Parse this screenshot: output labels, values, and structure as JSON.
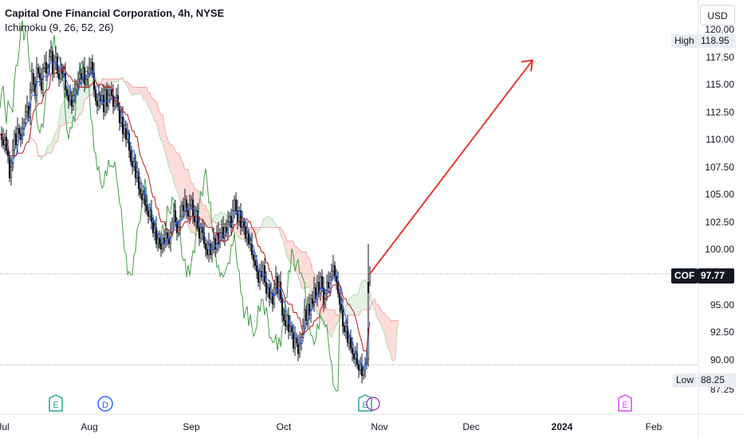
{
  "header": {
    "title": "Capital One Financial Corporation, 4h, NYSE",
    "indicator": "Ichimoku (9, 26, 52, 26)",
    "currency_button": "USD"
  },
  "badges": {
    "high_label": "High",
    "high_value": "118.95",
    "low_label": "Low",
    "low_value": "88.25",
    "symbol_label": "COF",
    "symbol_value": "97.77"
  },
  "colors": {
    "up": "#131722",
    "down": "#131722",
    "tenkan": "#2962ff",
    "kijun": "#b71c1c",
    "chikou": "#43a047",
    "cloud_bull": "#e2f0e2",
    "cloud_bear": "#fcd9d6",
    "span_a": "#a5d6a7",
    "span_b": "#ef9a9a",
    "arrow": "#e53935",
    "earnings": "#26a69a",
    "dividend": "#2962ff",
    "earnings_future": "#e040fb"
  },
  "chart_data": {
    "type": "candlestick",
    "yticks": [
      "120.00",
      "117.50",
      "115.00",
      "112.50",
      "110.00",
      "107.50",
      "105.00",
      "102.50",
      "100.00",
      "95.00",
      "92.50",
      "90.00",
      "87.25"
    ],
    "xticks": [
      "Jul",
      "Aug",
      "Sep",
      "Oct",
      "Nov",
      "Dec",
      "2024",
      "Feb"
    ],
    "ylim": [
      86.5,
      121
    ],
    "high": 118.95,
    "low": 88.25,
    "last": 97.77,
    "events": [
      {
        "type": "E",
        "label": "E",
        "month_pos": "late-Jul"
      },
      {
        "type": "D",
        "label": "D",
        "month_pos": "early-Aug"
      },
      {
        "type": "E",
        "label": "E",
        "month_pos": "late-Oct"
      },
      {
        "type": "E",
        "label": "E",
        "month_pos": "Jan"
      }
    ],
    "close_path": [
      [
        0,
        110.5
      ],
      [
        2,
        110
      ],
      [
        4,
        109.5
      ],
      [
        6,
        110.2
      ],
      [
        8,
        109
      ],
      [
        10,
        108.5
      ],
      [
        12,
        106.5
      ],
      [
        14,
        107.5
      ],
      [
        16,
        109
      ],
      [
        18,
        110.5
      ],
      [
        20,
        109.5
      ],
      [
        22,
        111
      ],
      [
        24,
        110.5
      ],
      [
        26,
        110
      ],
      [
        28,
        111
      ],
      [
        30,
        111.5
      ],
      [
        32,
        112.5
      ],
      [
        34,
        113
      ],
      [
        36,
        112
      ],
      [
        38,
        114.5
      ],
      [
        40,
        116
      ],
      [
        42,
        115
      ],
      [
        44,
        114
      ],
      [
        46,
        116.5
      ],
      [
        48,
        116
      ],
      [
        50,
        115.5
      ],
      [
        52,
        114.5
      ],
      [
        54,
        116.5
      ],
      [
        56,
        117
      ],
      [
        58,
        116
      ],
      [
        60,
        116.5
      ],
      [
        62,
        117.5
      ],
      [
        64,
        118
      ],
      [
        66,
        116
      ],
      [
        68,
        117
      ],
      [
        70,
        117.5
      ],
      [
        72,
        116
      ],
      [
        74,
        115.5
      ],
      [
        76,
        116.5
      ],
      [
        78,
        116
      ],
      [
        80,
        116
      ],
      [
        82,
        114.5
      ],
      [
        84,
        114
      ],
      [
        86,
        113.5
      ],
      [
        88,
        114
      ],
      [
        90,
        113
      ],
      [
        92,
        114
      ],
      [
        94,
        114.5
      ],
      [
        96,
        115
      ],
      [
        98,
        115.5
      ],
      [
        100,
        116
      ],
      [
        102,
        115.5
      ],
      [
        104,
        116.5
      ],
      [
        106,
        115
      ],
      [
        108,
        115.5
      ],
      [
        110,
        116
      ],
      [
        112,
        116.5
      ],
      [
        114,
        117
      ],
      [
        116,
        116
      ],
      [
        118,
        114.5
      ],
      [
        120,
        113.5
      ],
      [
        122,
        113
      ],
      [
        124,
        114
      ],
      [
        126,
        113.5
      ],
      [
        128,
        114
      ],
      [
        130,
        112.5
      ],
      [
        132,
        114.5
      ],
      [
        134,
        113
      ],
      [
        136,
        114
      ],
      [
        138,
        114.5
      ],
      [
        140,
        114
      ],
      [
        142,
        113
      ],
      [
        144,
        113.5
      ],
      [
        146,
        114
      ],
      [
        148,
        113
      ],
      [
        150,
        111.5
      ],
      [
        152,
        112
      ],
      [
        154,
        110.5
      ],
      [
        156,
        111
      ],
      [
        158,
        110
      ],
      [
        160,
        110.5
      ],
      [
        162,
        109
      ],
      [
        164,
        108
      ],
      [
        166,
        107.5
      ],
      [
        168,
        108
      ],
      [
        170,
        106.5
      ],
      [
        172,
        107
      ],
      [
        174,
        105.5
      ],
      [
        176,
        105
      ],
      [
        178,
        104.5
      ],
      [
        180,
        105
      ],
      [
        182,
        104
      ],
      [
        184,
        103.5
      ],
      [
        186,
        103
      ],
      [
        188,
        103.5
      ],
      [
        190,
        102.5
      ],
      [
        192,
        101.5
      ],
      [
        194,
        102
      ],
      [
        196,
        100.5
      ],
      [
        198,
        101
      ],
      [
        200,
        100.5
      ],
      [
        202,
        100
      ],
      [
        204,
        101
      ],
      [
        206,
        100.5
      ],
      [
        208,
        101.5
      ],
      [
        210,
        101
      ],
      [
        212,
        100.5
      ],
      [
        214,
        101.5
      ],
      [
        216,
        102.5
      ],
      [
        218,
        103.5
      ],
      [
        220,
        102.5
      ],
      [
        222,
        101.5
      ],
      [
        224,
        102
      ],
      [
        226,
        103
      ],
      [
        228,
        104
      ],
      [
        230,
        103.5
      ],
      [
        232,
        104.5
      ],
      [
        234,
        103.5
      ],
      [
        236,
        103
      ],
      [
        238,
        104
      ],
      [
        240,
        104.5
      ],
      [
        242,
        103
      ],
      [
        244,
        102.5
      ],
      [
        246,
        103.5
      ],
      [
        248,
        102
      ],
      [
        250,
        101
      ],
      [
        252,
        102
      ],
      [
        254,
        101.5
      ],
      [
        256,
        100.5
      ],
      [
        258,
        100
      ],
      [
        260,
        99.5
      ],
      [
        262,
        100.5
      ],
      [
        264,
        99.5
      ],
      [
        266,
        100
      ],
      [
        268,
        101
      ],
      [
        270,
        100
      ],
      [
        272,
        101.5
      ],
      [
        274,
        100.5
      ],
      [
        276,
        101.5
      ],
      [
        278,
        102
      ],
      [
        280,
        101
      ],
      [
        282,
        102
      ],
      [
        284,
        101.5
      ],
      [
        286,
        102.5
      ],
      [
        288,
        103
      ],
      [
        290,
        102
      ],
      [
        292,
        103.5
      ],
      [
        294,
        104.5
      ],
      [
        296,
        103.5
      ],
      [
        298,
        102.5
      ],
      [
        300,
        103.5
      ],
      [
        302,
        102
      ],
      [
        304,
        102.5
      ],
      [
        306,
        102
      ],
      [
        308,
        101
      ],
      [
        310,
        101.5
      ],
      [
        312,
        100.5
      ],
      [
        314,
        100.5
      ],
      [
        316,
        99.5
      ],
      [
        318,
        99
      ],
      [
        320,
        98.5
      ],
      [
        322,
        98
      ],
      [
        324,
        97
      ],
      [
        326,
        98
      ],
      [
        328,
        97.5
      ],
      [
        330,
        98.5
      ],
      [
        332,
        97
      ],
      [
        334,
        96
      ],
      [
        336,
        96.5
      ],
      [
        338,
        95.5
      ],
      [
        340,
        96
      ],
      [
        342,
        95
      ],
      [
        344,
        96.5
      ],
      [
        346,
        97.5
      ],
      [
        348,
        96
      ],
      [
        350,
        97
      ],
      [
        352,
        95.5
      ],
      [
        354,
        94
      ],
      [
        356,
        93.5
      ],
      [
        358,
        93
      ],
      [
        360,
        94
      ],
      [
        362,
        92.5
      ],
      [
        364,
        93
      ],
      [
        366,
        92.5
      ],
      [
        368,
        91
      ],
      [
        370,
        92
      ],
      [
        372,
        91.5
      ],
      [
        374,
        90.5
      ],
      [
        376,
        91.5
      ],
      [
        378,
        92
      ],
      [
        380,
        93
      ],
      [
        382,
        94.5
      ],
      [
        384,
        93.5
      ],
      [
        386,
        95
      ],
      [
        388,
        94
      ],
      [
        390,
        95.5
      ],
      [
        392,
        95
      ],
      [
        394,
        96.5
      ],
      [
        396,
        95.5
      ],
      [
        398,
        97
      ],
      [
        400,
        96
      ],
      [
        402,
        97.5
      ],
      [
        404,
        96.5
      ],
      [
        406,
        95
      ],
      [
        408,
        96
      ],
      [
        410,
        97
      ],
      [
        412,
        96.5
      ],
      [
        414,
        97.5
      ],
      [
        416,
        98
      ],
      [
        418,
        98.5
      ],
      [
        420,
        97.5
      ],
      [
        422,
        97
      ],
      [
        424,
        96
      ],
      [
        426,
        95
      ],
      [
        428,
        94.5
      ],
      [
        430,
        93
      ],
      [
        432,
        92.5
      ],
      [
        434,
        93
      ],
      [
        436,
        91.5
      ],
      [
        438,
        92
      ],
      [
        440,
        91
      ],
      [
        442,
        90.5
      ],
      [
        444,
        90
      ],
      [
        446,
        90.5
      ],
      [
        448,
        89.5
      ],
      [
        450,
        89
      ],
      [
        452,
        89.5
      ],
      [
        454,
        88.5
      ],
      [
        456,
        89
      ],
      [
        458,
        89.5
      ],
      [
        460,
        90
      ],
      [
        462,
        97
      ],
      [
        464,
        97.77
      ]
    ],
    "arrow": {
      "from": [
        464,
        97.77
      ],
      "to": [
        668,
        117.2
      ]
    }
  }
}
